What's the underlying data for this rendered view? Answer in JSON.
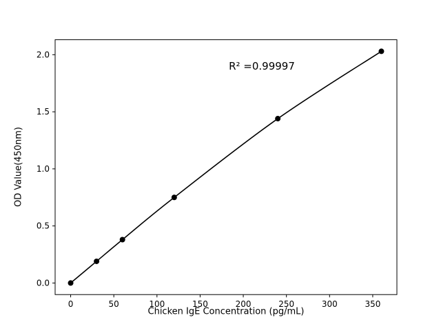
{
  "chart_data": {
    "type": "scatter",
    "x": [
      0,
      30,
      60,
      120,
      240,
      360
    ],
    "y": [
      0.0,
      0.19,
      0.38,
      0.75,
      1.44,
      2.03
    ],
    "title": "",
    "xlabel": "Chicken IgE Concentration (pg/mL)",
    "ylabel": "OD Value(450nm)",
    "annotation": "R² =0.99997",
    "xticks": [
      0,
      50,
      100,
      150,
      200,
      250,
      300,
      350
    ],
    "xtick_labels": [
      "0",
      "50",
      "100",
      "150",
      "200",
      "250",
      "300",
      "350"
    ],
    "yticks": [
      0.0,
      0.5,
      1.0,
      1.5,
      2.0
    ],
    "ytick_labels": [
      "0.0",
      "0.5",
      "1.0",
      "1.5",
      "2.0"
    ],
    "xlim": [
      -18,
      378
    ],
    "ylim": [
      -0.1015,
      2.1315
    ],
    "grid": false,
    "legend": "none",
    "line_color": "#000000",
    "marker_color": "#000000",
    "frame_color": "#000000",
    "background_color": "#ffffff",
    "curve_style": "smooth line through markers"
  }
}
